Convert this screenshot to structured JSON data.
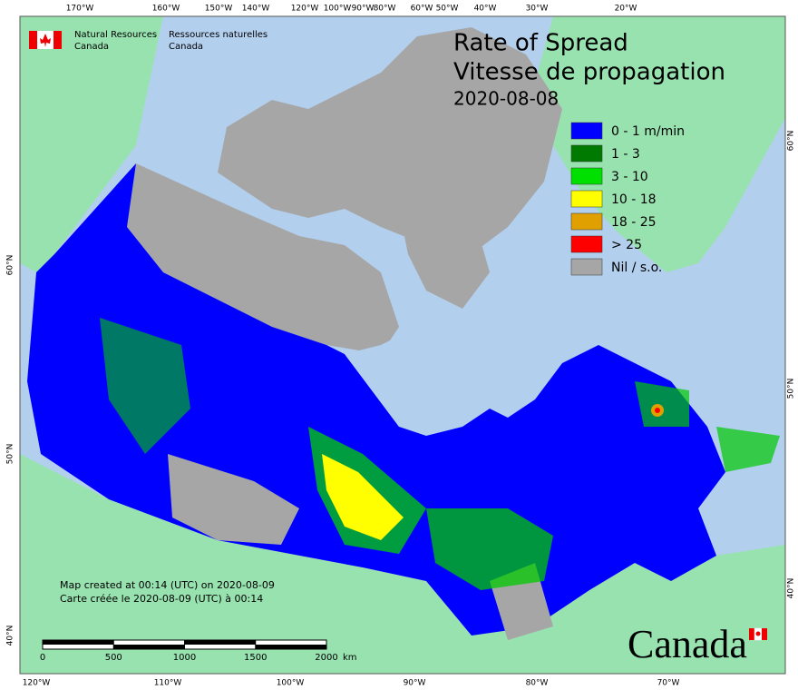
{
  "header": {
    "agency_en": [
      "Natural Resources",
      "Canada"
    ],
    "agency_fr": [
      "Ressources naturelles",
      "Canada"
    ]
  },
  "title": {
    "lines": [
      "Rate of Spread",
      "Vitesse de propagation"
    ],
    "date": "2020-08-08"
  },
  "legend": {
    "items": [
      {
        "label": "0 - 1 m/min",
        "color": "#0000ff"
      },
      {
        "label": "1 - 3",
        "color": "#007a00"
      },
      {
        "label": "3 - 10",
        "color": "#00e000"
      },
      {
        "label": "10 - 18",
        "color": "#ffff00"
      },
      {
        "label": "18 - 25",
        "color": "#e0a000"
      },
      {
        "label": "> 25",
        "color": "#ff0000"
      },
      {
        "label": "Nil / s.o.",
        "color": "#a6a6a6"
      }
    ]
  },
  "graticule": {
    "top": [
      "170°W",
      "160°W",
      "150°W",
      "140°W",
      "120°W",
      "100°W",
      "90°W",
      "80°W",
      "60°W",
      "50°W",
      "40°W",
      "30°W",
      "20°W"
    ],
    "bottom": [
      "120°W",
      "110°W",
      "100°W",
      "90°W",
      "80°W",
      "70°W"
    ],
    "left": [
      "60°N",
      "50°N",
      "40°N"
    ],
    "right": [
      "60°N",
      "50°N",
      "40°N"
    ]
  },
  "footer": {
    "lines": [
      "Map created at 00:14 (UTC) on 2020-08-09",
      "Carte créée le 2020-08-09 (UTC) à 00:14"
    ]
  },
  "scale_bar": {
    "ticks": [
      0,
      500,
      1000,
      1500,
      2000
    ],
    "unit": "km"
  },
  "wordmark": "Canada"
}
